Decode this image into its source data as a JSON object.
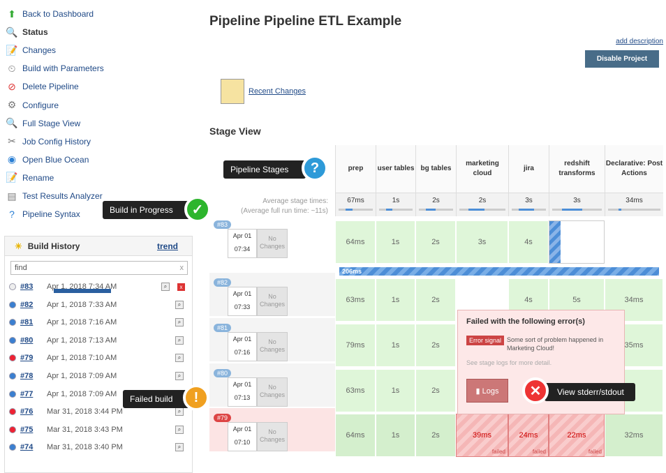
{
  "sidebar": {
    "items": [
      {
        "label": "Back to Dashboard",
        "icon": "arrow-up-icon"
      },
      {
        "label": "Status",
        "icon": "search-icon"
      },
      {
        "label": "Changes",
        "icon": "notepad-icon"
      },
      {
        "label": "Build with Parameters",
        "icon": "clock-icon"
      },
      {
        "label": "Delete Pipeline",
        "icon": "no-entry-icon"
      },
      {
        "label": "Configure",
        "icon": "gear-icon"
      },
      {
        "label": "Full Stage View",
        "icon": "search-icon"
      },
      {
        "label": "Job Config History",
        "icon": "tools-icon"
      },
      {
        "label": "Open Blue Ocean",
        "icon": "blue-ocean-icon"
      },
      {
        "label": "Rename",
        "icon": "notepad-icon"
      },
      {
        "label": "Test Results Analyzer",
        "icon": "chart-icon"
      },
      {
        "label": "Pipeline Syntax",
        "icon": "help-icon"
      }
    ]
  },
  "build_history": {
    "title": "Build History",
    "trend": "trend",
    "find": "find",
    "clear": "x",
    "rows": [
      {
        "num": "#83",
        "date": "Apr 1, 2018 7:34 AM",
        "status": "running"
      },
      {
        "num": "#82",
        "date": "Apr 1, 2018 7:33 AM",
        "status": "success"
      },
      {
        "num": "#81",
        "date": "Apr 1, 2018 7:16 AM",
        "status": "success"
      },
      {
        "num": "#80",
        "date": "Apr 1, 2018 7:13 AM",
        "status": "success"
      },
      {
        "num": "#79",
        "date": "Apr 1, 2018 7:10 AM",
        "status": "failed"
      },
      {
        "num": "#78",
        "date": "Apr 1, 2018 7:09 AM",
        "status": "success"
      },
      {
        "num": "#77",
        "date": "Apr 1, 2018 7:09 AM",
        "status": "success"
      },
      {
        "num": "#76",
        "date": "Mar 31, 2018 3:44 PM",
        "status": "failed"
      },
      {
        "num": "#75",
        "date": "Mar 31, 2018 3:43 PM",
        "status": "failed"
      },
      {
        "num": "#74",
        "date": "Mar 31, 2018 3:40 PM",
        "status": "success"
      }
    ]
  },
  "main": {
    "title": "Pipeline Pipeline ETL Example",
    "add_description": "add description",
    "disable": "Disable Project",
    "recent_changes": "Recent Changes",
    "stage_view": "Stage View",
    "avg_label_1": "Average stage times:",
    "avg_label_2": "(Average full run time: ~11s)"
  },
  "stages": [
    {
      "name": "prep",
      "avg": "67ms",
      "avg_fill": 0.2
    },
    {
      "name": "user tables",
      "avg": "1s",
      "avg_fill": 0.2
    },
    {
      "name": "bg tables",
      "avg": "2s",
      "avg_fill": 0.3
    },
    {
      "name": "marketing cloud",
      "avg": "2s",
      "avg_fill": 0.35
    },
    {
      "name": "jira",
      "avg": "3s",
      "avg_fill": 0.45
    },
    {
      "name": "redshift transforms",
      "avg": "3s",
      "avg_fill": 0.4
    },
    {
      "name": "Declarative: Post Actions",
      "avg": "34ms",
      "avg_fill": 0.05
    }
  ],
  "runs": [
    {
      "tag": "#83",
      "month": "Apr 01",
      "time": "07:34",
      "changes": "No Changes",
      "cells": [
        "64ms",
        "1s",
        "2s",
        "3s",
        "4s",
        "",
        ""
      ],
      "progress": "206ms"
    },
    {
      "tag": "#82",
      "month": "Apr 01",
      "time": "07:33",
      "changes": "No Changes",
      "cells": [
        "63ms",
        "1s",
        "2s",
        "",
        "4s",
        "5s",
        "34ms"
      ]
    },
    {
      "tag": "#81",
      "month": "Apr 01",
      "time": "07:16",
      "changes": "No Changes",
      "cells": [
        "79ms",
        "1s",
        "2s",
        "",
        "",
        "",
        "35ms"
      ]
    },
    {
      "tag": "#80",
      "month": "Apr 01",
      "time": "07:13",
      "changes": "No Changes",
      "cells": [
        "63ms",
        "1s",
        "2s",
        "",
        "",
        "",
        ""
      ]
    },
    {
      "tag": "#79",
      "month": "Apr 01",
      "time": "07:10",
      "changes": "No Changes",
      "cells": [
        "64ms",
        "1s",
        "2s",
        "39ms",
        "24ms",
        "22ms",
        "32ms"
      ],
      "failed": "failed"
    }
  ],
  "popup": {
    "title": "Failed with the following error(s)",
    "signal": "Error signal",
    "message": "Some sort of problem happened in Marketing Cloud!",
    "see": "See stage logs for more detail.",
    "logs": "Logs"
  },
  "callouts": {
    "stages": "Pipeline Stages",
    "progress": "Build in Progress",
    "failed": "Failed build",
    "stderr": "View stderr/stdout"
  }
}
